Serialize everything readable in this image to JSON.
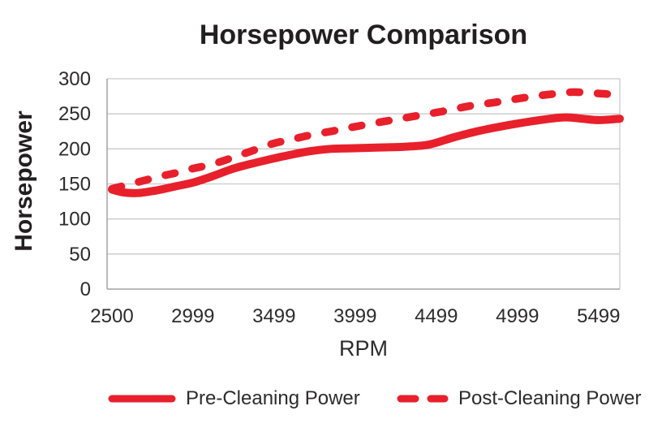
{
  "chart_data": {
    "type": "line",
    "title": "Horsepower Comparison",
    "xlabel": "RPM",
    "ylabel": "Horsepower",
    "x_tick_labels": [
      "2500",
      "2999",
      "3499",
      "3999",
      "4499",
      "4999",
      "5499"
    ],
    "x_tick_values": [
      2500,
      2999,
      3499,
      3999,
      4499,
      4999,
      5499
    ],
    "y_ticks": [
      0,
      50,
      100,
      150,
      200,
      250,
      300
    ],
    "ylim": [
      0,
      300
    ],
    "xlim": [
      2470,
      5630
    ],
    "grid": "horizontal",
    "legend_position": "bottom",
    "series": [
      {
        "name": "Pre-Cleaning Power",
        "style": "solid",
        "color": "#e8202b",
        "values_at_ticks": [
          142,
          152,
          185,
          200,
          205,
          235,
          241
        ],
        "points": [
          [
            2500,
            142
          ],
          [
            2570,
            138
          ],
          [
            2660,
            137
          ],
          [
            2780,
            141
          ],
          [
            2900,
            147
          ],
          [
            3000,
            152
          ],
          [
            3120,
            161
          ],
          [
            3250,
            172
          ],
          [
            3400,
            181
          ],
          [
            3550,
            189
          ],
          [
            3700,
            196
          ],
          [
            3850,
            200
          ],
          [
            4000,
            201
          ],
          [
            4150,
            202
          ],
          [
            4300,
            203
          ],
          [
            4450,
            206
          ],
          [
            4600,
            216
          ],
          [
            4750,
            225
          ],
          [
            4900,
            232
          ],
          [
            5050,
            238
          ],
          [
            5200,
            243
          ],
          [
            5300,
            245
          ],
          [
            5400,
            243
          ],
          [
            5500,
            241
          ],
          [
            5630,
            243
          ]
        ]
      },
      {
        "name": "Post-Cleaning Power",
        "style": "dashed",
        "color": "#e8202b",
        "values_at_ticks": [
          143,
          172,
          208,
          230,
          250,
          270,
          279
        ],
        "points": [
          [
            2500,
            143
          ],
          [
            2600,
            149
          ],
          [
            2700,
            155
          ],
          [
            2800,
            161
          ],
          [
            2900,
            166
          ],
          [
            3000,
            172
          ],
          [
            3100,
            177
          ],
          [
            3200,
            184
          ],
          [
            3300,
            192
          ],
          [
            3400,
            200
          ],
          [
            3500,
            208
          ],
          [
            3600,
            213
          ],
          [
            3710,
            219
          ],
          [
            3850,
            225
          ],
          [
            3960,
            230
          ],
          [
            4100,
            236
          ],
          [
            4250,
            242
          ],
          [
            4400,
            248
          ],
          [
            4550,
            254
          ],
          [
            4700,
            261
          ],
          [
            4850,
            266
          ],
          [
            4960,
            270
          ],
          [
            5100,
            275
          ],
          [
            5250,
            279
          ],
          [
            5350,
            281
          ],
          [
            5500,
            279
          ],
          [
            5630,
            277
          ]
        ]
      }
    ],
    "colors": {
      "line_red": "#e8202b",
      "title_text": "#231f20",
      "tick_text": "#2d2b2b",
      "gridline": "#c9c9c9",
      "axis_line": "#a3a3a3",
      "background": "#ffffff"
    }
  }
}
